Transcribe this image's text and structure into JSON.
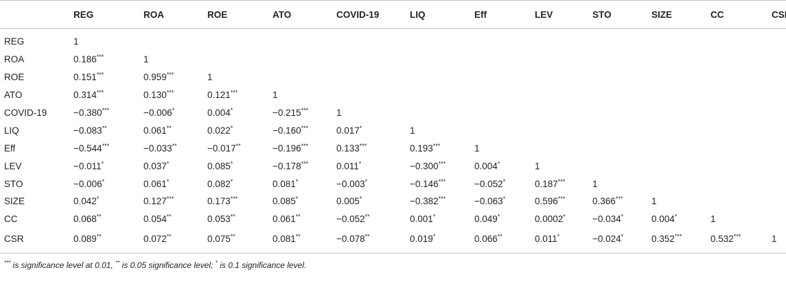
{
  "table": {
    "columns": [
      "",
      "REG",
      "ROA",
      "ROE",
      "ATO",
      "COVID-19",
      "LIQ",
      "Eff",
      "LEV",
      "STO",
      "SIZE",
      "CC",
      "CSR"
    ],
    "rows": [
      {
        "label": "REG",
        "cells": [
          [
            "1",
            ""
          ]
        ]
      },
      {
        "label": "ROA",
        "cells": [
          [
            "0.186",
            "***"
          ],
          [
            "1",
            ""
          ]
        ]
      },
      {
        "label": "ROE",
        "cells": [
          [
            "0.151",
            "***"
          ],
          [
            "0.959",
            "***"
          ],
          [
            "1",
            ""
          ]
        ]
      },
      {
        "label": "ATO",
        "cells": [
          [
            "0.314",
            "***"
          ],
          [
            "0.130",
            "***"
          ],
          [
            "0.121",
            "***"
          ],
          [
            "1",
            ""
          ]
        ]
      },
      {
        "label": "COVID-19",
        "cells": [
          [
            "−0.380",
            "***"
          ],
          [
            "−0.006",
            "*"
          ],
          [
            "0.004",
            "*"
          ],
          [
            "−0.215",
            "***"
          ],
          [
            "1",
            ""
          ]
        ]
      },
      {
        "label": "LIQ",
        "cells": [
          [
            "−0.083",
            "**"
          ],
          [
            "0.061",
            "**"
          ],
          [
            "0.022",
            "*"
          ],
          [
            "−0.160",
            "***"
          ],
          [
            "0.017",
            "*"
          ],
          [
            "1",
            ""
          ]
        ]
      },
      {
        "label": "Eff",
        "cells": [
          [
            "−0.544",
            "***"
          ],
          [
            "−0.033",
            "**"
          ],
          [
            "−0.017",
            "**"
          ],
          [
            "−0.196",
            "***"
          ],
          [
            "0.133",
            "***"
          ],
          [
            "0.193",
            "***"
          ],
          [
            "1",
            ""
          ]
        ]
      },
      {
        "label": "LEV",
        "cells": [
          [
            "−0.011",
            "*"
          ],
          [
            "0.037",
            "*"
          ],
          [
            "0.085",
            "*"
          ],
          [
            "−0.178",
            "***"
          ],
          [
            "0.011",
            "*"
          ],
          [
            "−0.300",
            "***"
          ],
          [
            "0.004",
            "*"
          ],
          [
            "1",
            ""
          ]
        ]
      },
      {
        "label": "STO",
        "cells": [
          [
            "−0.006",
            "*"
          ],
          [
            "0.061",
            "*"
          ],
          [
            "0.082",
            "*"
          ],
          [
            "0.081",
            "*"
          ],
          [
            "−0.003",
            "*"
          ],
          [
            "−0.146",
            "***"
          ],
          [
            "−0.052",
            "*"
          ],
          [
            "0.187",
            "***"
          ],
          [
            "1",
            ""
          ]
        ]
      },
      {
        "label": "SIZE",
        "cells": [
          [
            "0.042",
            "*"
          ],
          [
            "0.127",
            "***"
          ],
          [
            "0.173",
            "***"
          ],
          [
            "0.085",
            "*"
          ],
          [
            "0.005",
            "*"
          ],
          [
            "−0.382",
            "***"
          ],
          [
            "−0.063",
            "*"
          ],
          [
            "0.596",
            "***"
          ],
          [
            "0.366",
            "***"
          ],
          [
            "1",
            ""
          ]
        ]
      },
      {
        "label": "CC",
        "cells": [
          [
            "0.068",
            "**"
          ],
          [
            "0.054",
            "**"
          ],
          [
            "0.053",
            "**"
          ],
          [
            "0.061",
            "**"
          ],
          [
            "−0.052",
            "**"
          ],
          [
            "0.001",
            "*"
          ],
          [
            "0.049",
            "*"
          ],
          [
            "0.0002",
            "*"
          ],
          [
            "−0.034",
            "*"
          ],
          [
            "0.004",
            "*"
          ],
          [
            "1",
            ""
          ]
        ]
      },
      {
        "label": "CSR",
        "cells": [
          [
            "0.089",
            "**"
          ],
          [
            "0.072",
            "**"
          ],
          [
            "0.075",
            "**"
          ],
          [
            "0.081",
            "**"
          ],
          [
            "−0.078",
            "**"
          ],
          [
            "0.019",
            "*"
          ],
          [
            "0.066",
            "**"
          ],
          [
            "0.011",
            "*"
          ],
          [
            "−0.024",
            "*"
          ],
          [
            "0.352",
            "***"
          ],
          [
            "0.532",
            "***"
          ],
          [
            "1",
            ""
          ]
        ]
      }
    ]
  },
  "footnote": {
    "sig1_mark": "***",
    "sig1_text": " is significance level at 0.01, ",
    "sig2_mark": "**",
    "sig2_text": " is 0.05 significance level; ",
    "sig3_mark": "*",
    "sig3_text": " is 0.1 significance level."
  }
}
